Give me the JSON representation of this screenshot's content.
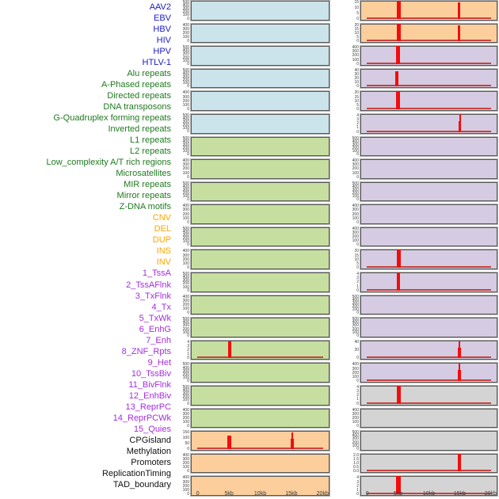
{
  "figure": {
    "background": "#ffffff",
    "x_axis": {
      "tick_labels": [
        "0",
        "5kb",
        "10kb",
        "15kb",
        "20kb"
      ],
      "tick_kb": [
        0,
        5,
        10,
        15,
        20
      ],
      "range_kb": [
        0,
        20
      ]
    },
    "colors": {
      "panel_virus": "#cbe3ea",
      "panel_repeat": "#c6dfa0",
      "panel_sv": "#fbce9c",
      "panel_chromatin": "#d5cbe2",
      "panel_other": "#d4d4d4",
      "label_virus": "#1a1acd",
      "label_repeat": "#1e7a1e",
      "label_sv": "#ffa500",
      "label_chromatin": "#a42ce0",
      "label_other": "#111111",
      "spike": "#f20d0d",
      "baseline": "#c9413b",
      "axis_text": "#3a3a3a",
      "panel_border": "#585858"
    }
  },
  "chart_data": {
    "type": "bar",
    "layout": "small-multiples grid, 22 rows x 2 columns; features 1-22 in column 1, features 23-44 in column 2; shared x axis 0-20kb",
    "x_tick_labels": [
      "0",
      "5kb",
      "10kb",
      "15kb",
      "20kb"
    ],
    "x_range_kb": [
      0,
      20
    ],
    "panels": [
      {
        "feature": "AAV2",
        "category": "virus",
        "column": 1,
        "row": 1,
        "y_ticks": [
          "500",
          "400",
          "300",
          "200",
          "100",
          "0"
        ],
        "baseline": false,
        "peaks": []
      },
      {
        "feature": "EBV",
        "category": "virus",
        "column": 1,
        "row": 2,
        "y_ticks": [
          "400",
          "300",
          "200",
          "100",
          "0"
        ],
        "baseline": false,
        "peaks": []
      },
      {
        "feature": "HBV",
        "category": "virus",
        "column": 1,
        "row": 3,
        "y_ticks": [
          "500",
          "400",
          "300",
          "200",
          "100",
          "0"
        ],
        "baseline": false,
        "peaks": []
      },
      {
        "feature": "HIV",
        "category": "virus",
        "column": 1,
        "row": 4,
        "y_ticks": [
          "500",
          "400",
          "300",
          "200",
          "100",
          "0"
        ],
        "baseline": false,
        "peaks": []
      },
      {
        "feature": "HPV",
        "category": "virus",
        "column": 1,
        "row": 5,
        "y_ticks": [
          "400",
          "300",
          "200",
          "100",
          "0"
        ],
        "baseline": false,
        "peaks": []
      },
      {
        "feature": "HTLV-1",
        "category": "virus",
        "column": 1,
        "row": 6,
        "y_ticks": [
          "500",
          "400",
          "300",
          "200",
          "100",
          "0"
        ],
        "baseline": false,
        "peaks": []
      },
      {
        "feature": "Alu repeats",
        "category": "repeat",
        "column": 1,
        "row": 7,
        "y_ticks": [
          "500",
          "400",
          "300",
          "200",
          "100",
          "0"
        ],
        "baseline": false,
        "peaks": []
      },
      {
        "feature": "A-Phased repeats",
        "category": "repeat",
        "column": 1,
        "row": 8,
        "y_ticks": [
          "400",
          "300",
          "200",
          "100",
          "0"
        ],
        "baseline": false,
        "peaks": []
      },
      {
        "feature": "Directed repeats",
        "category": "repeat",
        "column": 1,
        "row": 9,
        "y_ticks": [
          "500",
          "400",
          "300",
          "200",
          "100",
          "0"
        ],
        "baseline": false,
        "peaks": []
      },
      {
        "feature": "DNA transposons",
        "category": "repeat",
        "column": 1,
        "row": 10,
        "y_ticks": [
          "400",
          "300",
          "200",
          "100",
          "0"
        ],
        "baseline": false,
        "peaks": []
      },
      {
        "feature": "G-Quadruplex forming repeats",
        "category": "repeat",
        "column": 1,
        "row": 11,
        "y_ticks": [
          "500",
          "400",
          "300",
          "200",
          "100",
          "0"
        ],
        "baseline": false,
        "peaks": []
      },
      {
        "feature": "Inverted repeats",
        "category": "repeat",
        "column": 1,
        "row": 12,
        "y_ticks": [
          "400",
          "300",
          "200",
          "100",
          "0"
        ],
        "baseline": false,
        "peaks": []
      },
      {
        "feature": "L1 repeats",
        "category": "repeat",
        "column": 1,
        "row": 13,
        "y_ticks": [
          "500",
          "400",
          "300",
          "200",
          "100",
          "0"
        ],
        "baseline": false,
        "peaks": []
      },
      {
        "feature": "L2 repeats",
        "category": "repeat",
        "column": 1,
        "row": 14,
        "y_ticks": [
          "400",
          "300",
          "200",
          "100",
          "0"
        ],
        "baseline": false,
        "peaks": []
      },
      {
        "feature": "Low_complexity A/T rich regions",
        "category": "repeat",
        "column": 1,
        "row": 15,
        "y_ticks": [
          "500",
          "400",
          "300",
          "200",
          "100",
          "0"
        ],
        "baseline": false,
        "peaks": []
      },
      {
        "feature": "Microsatellites",
        "category": "repeat",
        "column": 1,
        "row": 16,
        "y_ticks": [
          "4",
          "3",
          "2",
          "1",
          "0"
        ],
        "baseline": true,
        "peaks": [
          {
            "x_kb": 5,
            "value": 4,
            "h": 0.97,
            "w": 4,
            "tip": false
          }
        ]
      },
      {
        "feature": "MIR repeats",
        "category": "repeat",
        "column": 1,
        "row": 17,
        "y_ticks": [
          "500",
          "400",
          "300",
          "200",
          "100",
          "0"
        ],
        "baseline": false,
        "peaks": []
      },
      {
        "feature": "Mirror repeats",
        "category": "repeat",
        "column": 1,
        "row": 18,
        "y_ticks": [
          "500",
          "400",
          "300",
          "200",
          "100",
          "0"
        ],
        "baseline": false,
        "peaks": []
      },
      {
        "feature": "Z-DNA motifs",
        "category": "repeat",
        "column": 1,
        "row": 19,
        "y_ticks": [
          "400",
          "300",
          "200",
          "100",
          "0"
        ],
        "baseline": false,
        "peaks": []
      },
      {
        "feature": "CNV",
        "category": "sv",
        "column": 1,
        "row": 20,
        "y_ticks": [
          "150",
          "100",
          "50",
          "0"
        ],
        "baseline": true,
        "peaks": [
          {
            "x_kb": 5,
            "value": 115,
            "h": 0.76,
            "w": 5,
            "tip": false
          },
          {
            "x_kb": 15.2,
            "value": 140,
            "h": 0.94,
            "w": 4,
            "tip": true
          }
        ]
      },
      {
        "feature": "DEL",
        "category": "sv",
        "column": 1,
        "row": 21,
        "y_ticks": [
          "400",
          "300",
          "200",
          "100",
          "0"
        ],
        "baseline": false,
        "peaks": []
      },
      {
        "feature": "DUP",
        "category": "sv",
        "column": 1,
        "row": 22,
        "y_ticks": [
          "400",
          "300",
          "200",
          "100",
          "0"
        ],
        "baseline": false,
        "peaks": []
      },
      {
        "feature": "INS",
        "category": "sv",
        "column": 2,
        "row": 1,
        "y_ticks": [
          "15",
          "10",
          "5",
          "0"
        ],
        "baseline": true,
        "peaks": [
          {
            "x_kb": 5,
            "value": 15,
            "h": 1,
            "w": 5,
            "tip": false
          },
          {
            "x_kb": 15,
            "value": 13.5,
            "h": 0.9,
            "w": 3,
            "tip": false
          }
        ]
      },
      {
        "feature": "INV",
        "category": "sv",
        "column": 2,
        "row": 2,
        "y_ticks": [
          "20",
          "15",
          "10",
          "5",
          "0"
        ],
        "baseline": true,
        "peaks": [
          {
            "x_kb": 5,
            "value": 20,
            "h": 1,
            "w": 5,
            "tip": false
          },
          {
            "x_kb": 15,
            "value": 17.5,
            "h": 0.88,
            "w": 3,
            "tip": false
          }
        ]
      },
      {
        "feature": "1_TssA",
        "category": "chromatin",
        "column": 2,
        "row": 3,
        "y_ticks": [
          "400",
          "300",
          "200",
          "100",
          "0"
        ],
        "baseline": true,
        "peaks": [
          {
            "x_kb": 4.9,
            "value": 400,
            "h": 1,
            "w": 5,
            "tip": false
          }
        ]
      },
      {
        "feature": "2_TssAFlnk",
        "category": "chromatin",
        "column": 2,
        "row": 4,
        "y_ticks": [
          "40",
          "30",
          "20",
          "10",
          "0"
        ],
        "baseline": true,
        "peaks": [
          {
            "x_kb": 4.7,
            "value": 35,
            "h": 0.87,
            "w": 4,
            "tip": false
          }
        ]
      },
      {
        "feature": "3_TxFlnk",
        "category": "chromatin",
        "column": 2,
        "row": 5,
        "y_ticks": [
          "20",
          "15",
          "10",
          "5",
          "0"
        ],
        "baseline": true,
        "peaks": [
          {
            "x_kb": 4.9,
            "value": 20,
            "h": 1,
            "w": 5,
            "tip": false
          }
        ]
      },
      {
        "feature": "4_Tx",
        "category": "chromatin",
        "column": 2,
        "row": 6,
        "y_ticks": [
          "4",
          "3",
          "2",
          "1",
          "0"
        ],
        "baseline": true,
        "peaks": [
          {
            "x_kb": 15.1,
            "value": 4,
            "h": 1,
            "w": 3,
            "tip": true
          }
        ]
      },
      {
        "feature": "5_TxWk",
        "category": "chromatin",
        "column": 2,
        "row": 7,
        "y_ticks": [
          "500",
          "400",
          "300",
          "200",
          "100",
          "0"
        ],
        "baseline": false,
        "peaks": []
      },
      {
        "feature": "6_EnhG",
        "category": "chromatin",
        "column": 2,
        "row": 8,
        "y_ticks": [
          "400",
          "300",
          "200",
          "100",
          "0"
        ],
        "baseline": false,
        "peaks": []
      },
      {
        "feature": "7_Enh",
        "category": "chromatin",
        "column": 2,
        "row": 9,
        "y_ticks": [
          "500",
          "400",
          "300",
          "200",
          "100",
          "0"
        ],
        "baseline": false,
        "peaks": []
      },
      {
        "feature": "8_ZNF_Rpts",
        "category": "chromatin",
        "column": 2,
        "row": 10,
        "y_ticks": [
          "400",
          "300",
          "200",
          "100",
          "0"
        ],
        "baseline": false,
        "peaks": []
      },
      {
        "feature": "9_Het",
        "category": "chromatin",
        "column": 2,
        "row": 11,
        "y_ticks": [
          "400",
          "300",
          "200",
          "100",
          "0"
        ],
        "baseline": false,
        "peaks": []
      },
      {
        "feature": "10_TssBiv",
        "category": "chromatin",
        "column": 2,
        "row": 12,
        "y_ticks": [
          "20",
          "15",
          "10",
          "5",
          "0"
        ],
        "baseline": true,
        "peaks": [
          {
            "x_kb": 5,
            "value": 20,
            "h": 1,
            "w": 5,
            "tip": false
          }
        ]
      },
      {
        "feature": "11_BivFlnk",
        "category": "chromatin",
        "column": 2,
        "row": 13,
        "y_ticks": [
          "4",
          "3",
          "2",
          "1",
          "0"
        ],
        "baseline": true,
        "peaks": [
          {
            "x_kb": 5,
            "value": 4,
            "h": 1,
            "w": 4,
            "tip": false
          }
        ]
      },
      {
        "feature": "12_EnhBiv",
        "category": "chromatin",
        "column": 2,
        "row": 14,
        "y_ticks": [
          "500",
          "400",
          "300",
          "200",
          "100",
          "0"
        ],
        "baseline": false,
        "peaks": []
      },
      {
        "feature": "13_ReprPC",
        "category": "chromatin",
        "column": 2,
        "row": 15,
        "y_ticks": [
          "500",
          "400",
          "300",
          "200",
          "100",
          "0"
        ],
        "baseline": false,
        "peaks": []
      },
      {
        "feature": "14_ReprPCWk",
        "category": "chromatin",
        "column": 2,
        "row": 16,
        "y_ticks": [
          "40",
          "20",
          "0"
        ],
        "baseline": true,
        "peaks": [
          {
            "x_kb": 15,
            "value": 38,
            "h": 0.95,
            "w": 4,
            "tip": true
          }
        ]
      },
      {
        "feature": "15_Quies",
        "category": "chromatin",
        "column": 2,
        "row": 17,
        "y_ticks": [
          "400",
          "300",
          "200",
          "100",
          "0"
        ],
        "baseline": true,
        "peaks": [
          {
            "x_kb": 15,
            "value": 390,
            "h": 0.97,
            "w": 4,
            "tip": true
          }
        ]
      },
      {
        "feature": "CPGisland",
        "category": "other",
        "column": 2,
        "row": 18,
        "y_ticks": [
          "4",
          "3",
          "2",
          "1",
          "0"
        ],
        "baseline": true,
        "peaks": [
          {
            "x_kb": 5,
            "value": 4,
            "h": 1,
            "w": 5,
            "tip": false
          }
        ]
      },
      {
        "feature": "Methylation",
        "category": "other",
        "column": 2,
        "row": 19,
        "y_ticks": [
          "400",
          "300",
          "200",
          "100",
          "0"
        ],
        "baseline": false,
        "peaks": []
      },
      {
        "feature": "Promoters",
        "category": "other",
        "column": 2,
        "row": 20,
        "y_ticks": [
          "500",
          "400",
          "300",
          "200",
          "100",
          "0"
        ],
        "baseline": false,
        "peaks": []
      },
      {
        "feature": "ReplicationTiming",
        "category": "other",
        "column": 2,
        "row": 21,
        "y_ticks": [
          "2.0",
          "1.5",
          "1.0",
          "0.5",
          "0.0"
        ],
        "baseline": true,
        "peaks": [
          {
            "x_kb": 15,
            "value": 2.0,
            "h": 1,
            "w": 4,
            "tip": false
          }
        ]
      },
      {
        "feature": "TAD_boundary",
        "category": "other",
        "column": 2,
        "row": 22,
        "y_ticks": [
          "4",
          "3",
          "2",
          "1",
          "0"
        ],
        "baseline": true,
        "peaks": [
          {
            "x_kb": 5,
            "value": 4,
            "h": 1,
            "w": 6,
            "tip": false
          }
        ]
      }
    ]
  }
}
